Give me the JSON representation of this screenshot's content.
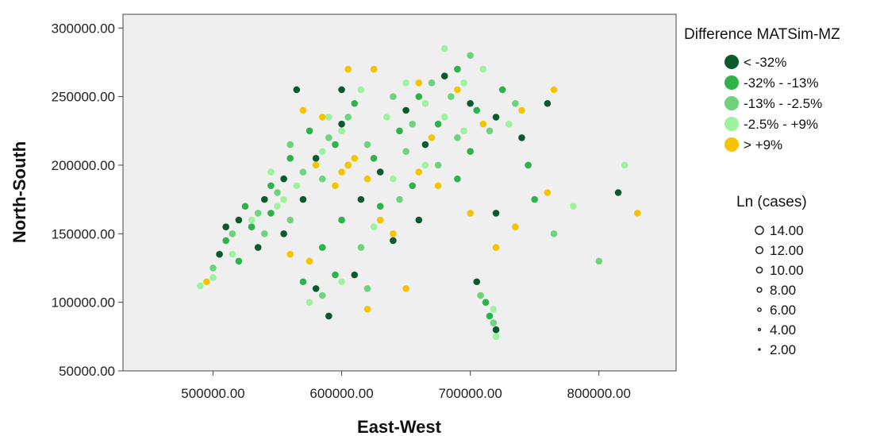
{
  "chart_data": {
    "type": "scatter",
    "title": "",
    "xlabel": "East-West",
    "ylabel": "North-South",
    "xlim": [
      430000,
      860000
    ],
    "ylim": [
      50000,
      310000
    ],
    "x_ticks": [
      500000,
      600000,
      700000,
      800000
    ],
    "x_tick_labels": [
      "500000.00",
      "600000.00",
      "700000.00",
      "800000.00"
    ],
    "y_ticks": [
      50000,
      100000,
      150000,
      200000,
      250000,
      300000
    ],
    "y_tick_labels": [
      "50000.00",
      "100000.00",
      "150000.00",
      "200000.00",
      "250000.00",
      "300000.00"
    ],
    "grid": false,
    "background": "#efefef",
    "color_legend": {
      "title": "Difference MATSim-MZ",
      "placement": "top-right",
      "entries": [
        {
          "label": "< -32%",
          "color": "#0b5a2e"
        },
        {
          "label": "-32% - -13%",
          "color": "#2db34a"
        },
        {
          "label": "-13% - -2.5%",
          "color": "#6fd27d"
        },
        {
          "label": "-2.5% - +9%",
          "color": "#9df29d"
        },
        {
          "label": "> +9%",
          "color": "#f5c400"
        }
      ]
    },
    "size_legend": {
      "title": "Ln (cases)",
      "placement": "right",
      "entries": [
        {
          "label": "14.00",
          "value": 14
        },
        {
          "label": "12.00",
          "value": 12
        },
        {
          "label": "10.00",
          "value": 10
        },
        {
          "label": "8.00",
          "value": 8
        },
        {
          "label": "6.00",
          "value": 6
        },
        {
          "label": "4.00",
          "value": 4
        },
        {
          "label": "2.00",
          "value": 2
        }
      ]
    },
    "series": [
      {
        "category": 0,
        "points": [
          [
            505000,
            135000
          ],
          [
            520000,
            160000
          ],
          [
            540000,
            175000
          ],
          [
            555000,
            190000
          ],
          [
            565000,
            255000
          ],
          [
            580000,
            205000
          ],
          [
            600000,
            230000
          ],
          [
            615000,
            175000
          ],
          [
            630000,
            195000
          ],
          [
            650000,
            240000
          ],
          [
            665000,
            215000
          ],
          [
            680000,
            265000
          ],
          [
            700000,
            245000
          ],
          [
            720000,
            235000
          ],
          [
            740000,
            220000
          ],
          [
            760000,
            245000
          ],
          [
            580000,
            110000
          ],
          [
            610000,
            120000
          ],
          [
            705000,
            115000
          ],
          [
            720000,
            80000
          ],
          [
            660000,
            160000
          ],
          [
            555000,
            150000
          ],
          [
            535000,
            140000
          ],
          [
            590000,
            90000
          ],
          [
            720000,
            165000
          ],
          [
            815000,
            180000
          ],
          [
            640000,
            145000
          ],
          [
            600000,
            255000
          ],
          [
            510000,
            155000
          ],
          [
            570000,
            175000
          ]
        ]
      },
      {
        "category": 1,
        "points": [
          [
            510000,
            145000
          ],
          [
            525000,
            170000
          ],
          [
            545000,
            185000
          ],
          [
            560000,
            205000
          ],
          [
            575000,
            225000
          ],
          [
            595000,
            215000
          ],
          [
            610000,
            245000
          ],
          [
            625000,
            205000
          ],
          [
            645000,
            225000
          ],
          [
            660000,
            250000
          ],
          [
            675000,
            230000
          ],
          [
            690000,
            270000
          ],
          [
            705000,
            240000
          ],
          [
            725000,
            255000
          ],
          [
            745000,
            200000
          ],
          [
            700000,
            210000
          ],
          [
            570000,
            115000
          ],
          [
            595000,
            120000
          ],
          [
            712000,
            100000
          ],
          [
            715000,
            90000
          ],
          [
            630000,
            170000
          ],
          [
            545000,
            165000
          ],
          [
            520000,
            130000
          ],
          [
            750000,
            175000
          ],
          [
            600000,
            160000
          ],
          [
            655000,
            185000
          ],
          [
            585000,
            140000
          ],
          [
            690000,
            190000
          ],
          [
            530000,
            155000
          ],
          [
            605000,
            200000
          ]
        ]
      },
      {
        "category": 2,
        "points": [
          [
            500000,
            125000
          ],
          [
            515000,
            150000
          ],
          [
            535000,
            165000
          ],
          [
            550000,
            180000
          ],
          [
            570000,
            195000
          ],
          [
            590000,
            220000
          ],
          [
            605000,
            235000
          ],
          [
            620000,
            215000
          ],
          [
            640000,
            250000
          ],
          [
            655000,
            230000
          ],
          [
            670000,
            260000
          ],
          [
            685000,
            250000
          ],
          [
            700000,
            280000
          ],
          [
            715000,
            225000
          ],
          [
            735000,
            245000
          ],
          [
            690000,
            220000
          ],
          [
            585000,
            105000
          ],
          [
            620000,
            110000
          ],
          [
            708000,
            105000
          ],
          [
            718000,
            85000
          ],
          [
            645000,
            175000
          ],
          [
            560000,
            160000
          ],
          [
            540000,
            150000
          ],
          [
            765000,
            150000
          ],
          [
            800000,
            130000
          ],
          [
            615000,
            140000
          ],
          [
            675000,
            200000
          ],
          [
            560000,
            215000
          ],
          [
            585000,
            190000
          ],
          [
            650000,
            210000
          ]
        ]
      },
      {
        "category": 3,
        "points": [
          [
            490000,
            112000
          ],
          [
            500000,
            118000
          ],
          [
            515000,
            135000
          ],
          [
            530000,
            160000
          ],
          [
            550000,
            170000
          ],
          [
            565000,
            185000
          ],
          [
            585000,
            210000
          ],
          [
            600000,
            225000
          ],
          [
            615000,
            255000
          ],
          [
            635000,
            235000
          ],
          [
            650000,
            260000
          ],
          [
            665000,
            245000
          ],
          [
            680000,
            285000
          ],
          [
            695000,
            260000
          ],
          [
            710000,
            270000
          ],
          [
            730000,
            230000
          ],
          [
            680000,
            235000
          ],
          [
            575000,
            100000
          ],
          [
            600000,
            115000
          ],
          [
            718000,
            95000
          ],
          [
            720000,
            75000
          ],
          [
            640000,
            190000
          ],
          [
            555000,
            175000
          ],
          [
            780000,
            170000
          ],
          [
            820000,
            200000
          ],
          [
            625000,
            155000
          ],
          [
            665000,
            200000
          ],
          [
            590000,
            235000
          ],
          [
            695000,
            225000
          ],
          [
            545000,
            195000
          ]
        ]
      },
      {
        "category": 4,
        "points": [
          [
            495000,
            115000
          ],
          [
            560000,
            135000
          ],
          [
            575000,
            130000
          ],
          [
            595000,
            185000
          ],
          [
            600000,
            195000
          ],
          [
            605000,
            200000
          ],
          [
            610000,
            205000
          ],
          [
            620000,
            190000
          ],
          [
            630000,
            160000
          ],
          [
            640000,
            150000
          ],
          [
            570000,
            240000
          ],
          [
            585000,
            235000
          ],
          [
            605000,
            270000
          ],
          [
            625000,
            270000
          ],
          [
            660000,
            260000
          ],
          [
            690000,
            255000
          ],
          [
            710000,
            230000
          ],
          [
            740000,
            240000
          ],
          [
            765000,
            255000
          ],
          [
            660000,
            195000
          ],
          [
            675000,
            185000
          ],
          [
            700000,
            165000
          ],
          [
            720000,
            140000
          ],
          [
            735000,
            155000
          ],
          [
            760000,
            180000
          ],
          [
            830000,
            165000
          ],
          [
            620000,
            95000
          ],
          [
            650000,
            110000
          ],
          [
            670000,
            220000
          ],
          [
            580000,
            200000
          ]
        ]
      }
    ]
  }
}
